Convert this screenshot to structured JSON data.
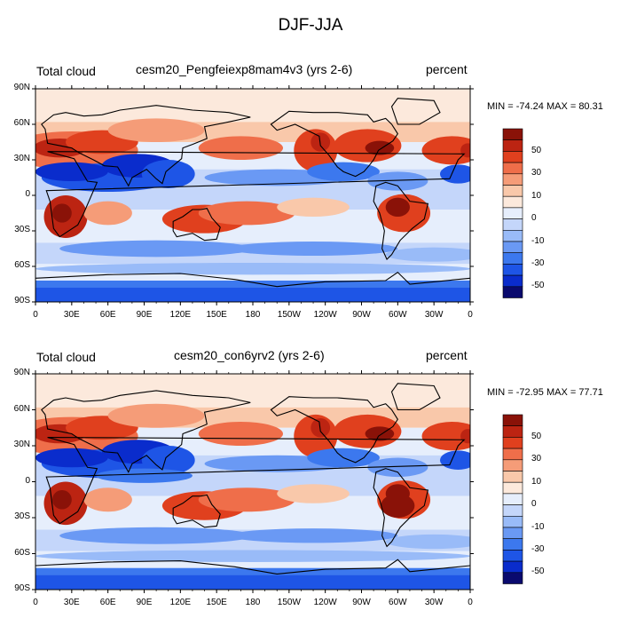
{
  "figure": {
    "title": "DJF-JJA"
  },
  "axes": {
    "lat_labels": [
      "90N",
      "60N",
      "30N",
      "0",
      "30S",
      "60S",
      "90S"
    ],
    "lon_labels": [
      "0",
      "30E",
      "60E",
      "90E",
      "120E",
      "150E",
      "180",
      "150W",
      "120W",
      "90W",
      "60W",
      "30W",
      "0"
    ]
  },
  "colorbar": {
    "colors": [
      "#0a0a6e",
      "#0a2ccc",
      "#1e55e6",
      "#3c78ee",
      "#6a99f4",
      "#99bbf8",
      "#c4d6fa",
      "#e6eefc",
      "#fce9dc",
      "#f9c8aa",
      "#f59c78",
      "#ef6e4a",
      "#e0401e",
      "#bc2412",
      "#8a1208"
    ],
    "labels": [
      "50",
      "30",
      "10",
      "0",
      "-10",
      "-30",
      "-50"
    ]
  },
  "panels": [
    {
      "left_label": "Total cloud",
      "center_label": "cesm20_Pengfeiexp8mam4v3 (yrs 2-6)",
      "right_label": "percent",
      "min_max": "MIN = -74.24 MAX =  80.31"
    },
    {
      "left_label": "Total cloud",
      "center_label": "cesm20_con6yrv2 (yrs 2-6)",
      "right_label": "percent",
      "min_max": "MIN = -72.95 MAX =  77.71"
    }
  ]
}
